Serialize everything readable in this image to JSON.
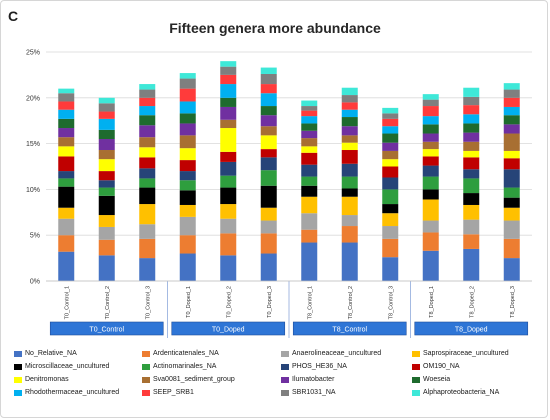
{
  "panel_letter": "C",
  "chart_data": {
    "type": "bar",
    "stacked": true,
    "title": "Fifteen genera more abundance",
    "xlabel": "",
    "ylabel": "",
    "ylim": [
      0,
      25
    ],
    "yticks": [
      "0%",
      "5%",
      "10%",
      "15%",
      "20%",
      "25%"
    ],
    "grid": true,
    "legend_position": "bottom",
    "categories": [
      "T0_Control_1",
      "T0_Control_2",
      "T0_Control_3",
      "T0_Doped_1",
      "T0_Doped_2",
      "T0_Doped_3",
      "T8_Control_1",
      "T8_Control_2",
      "T8_Control_3",
      "T8_Doped_1",
      "T8_Doped_2",
      "T8_Doped_3"
    ],
    "groups": [
      {
        "label": "T0_Control",
        "members": [
          0,
          1,
          2
        ]
      },
      {
        "label": "T0_Doped",
        "members": [
          3,
          4,
          5
        ]
      },
      {
        "label": "T8_Control",
        "members": [
          6,
          7,
          8
        ]
      },
      {
        "label": "T8_Doped",
        "members": [
          9,
          10,
          11
        ]
      }
    ],
    "series": [
      {
        "name": "No_Relative_NA",
        "color": "#4472c4",
        "values": [
          3.2,
          2.8,
          2.5,
          3.0,
          2.8,
          3.0,
          4.2,
          4.2,
          2.6,
          3.3,
          3.5,
          2.5
        ]
      },
      {
        "name": "Ardenticatenales_NA",
        "color": "#ed7d31",
        "values": [
          1.8,
          1.7,
          2.1,
          2.0,
          2.4,
          2.2,
          1.4,
          1.8,
          2.0,
          2.0,
          1.6,
          2.1
        ]
      },
      {
        "name": "Anaerolineaceae_uncultured",
        "color": "#a5a5a5",
        "values": [
          1.8,
          1.4,
          1.6,
          2.0,
          1.6,
          1.4,
          1.8,
          1.2,
          1.4,
          1.3,
          1.6,
          2.0
        ]
      },
      {
        "name": "Saprospiraceae_uncultured",
        "color": "#ffc000",
        "values": [
          1.2,
          1.3,
          2.2,
          1.3,
          1.6,
          1.4,
          1.8,
          2.0,
          1.4,
          2.3,
          1.6,
          1.4
        ]
      },
      {
        "name": "Microscillaceae_uncultured",
        "color": "#000000",
        "values": [
          2.3,
          2.1,
          1.8,
          1.6,
          1.8,
          2.4,
          1.2,
          0.9,
          1.0,
          1.1,
          1.3,
          1.1
        ]
      },
      {
        "name": "Actinomarinales_NA",
        "color": "#2e9e3e",
        "values": [
          0.9,
          0.9,
          1.0,
          1.1,
          1.3,
          1.7,
          1.0,
          1.3,
          1.6,
          1.4,
          1.6,
          1.1
        ]
      },
      {
        "name": "PHOS_HE36_NA",
        "color": "#264478",
        "values": [
          0.8,
          0.8,
          1.1,
          1.0,
          1.5,
          1.4,
          1.3,
          1.4,
          1.3,
          1.2,
          1.0,
          2.0
        ]
      },
      {
        "name": "OM190_NA",
        "color": "#c00000",
        "values": [
          1.6,
          1.0,
          1.2,
          1.2,
          1.1,
          0.9,
          1.3,
          1.5,
          1.2,
          1.0,
          1.3,
          1.2
        ]
      },
      {
        "name": "Denitromonas",
        "color": "#ffff00",
        "values": [
          1.1,
          1.3,
          1.1,
          1.3,
          2.6,
          1.5,
          0.7,
          0.8,
          0.8,
          0.8,
          0.7,
          0.8
        ]
      },
      {
        "name": "Sva0081_sediment_group",
        "color": "#a86f32",
        "values": [
          1.0,
          1.0,
          1.1,
          1.4,
          0.9,
          1.0,
          0.9,
          0.8,
          0.9,
          0.8,
          1.0,
          1.9
        ]
      },
      {
        "name": "Ilumatobacter",
        "color": "#7030a0",
        "values": [
          1.0,
          1.2,
          1.3,
          1.3,
          1.4,
          1.2,
          0.8,
          1.0,
          0.9,
          0.9,
          1.0,
          1.0
        ]
      },
      {
        "name": "Woeseia",
        "color": "#1e6b2e",
        "values": [
          1.0,
          1.0,
          1.1,
          1.1,
          1.0,
          1.0,
          0.8,
          1.0,
          1.0,
          1.0,
          1.0,
          1.0
        ]
      },
      {
        "name": "Rhodothermaceae_uncultured",
        "color": "#00b0f0",
        "values": [
          1.0,
          1.2,
          1.0,
          1.3,
          1.5,
          1.4,
          0.8,
          0.8,
          0.8,
          0.9,
          1.0,
          0.9
        ]
      },
      {
        "name": "SEEP_SRB1",
        "color": "#ff3b3b",
        "values": [
          0.9,
          0.8,
          0.9,
          1.4,
          1.0,
          1.0,
          0.6,
          0.8,
          0.8,
          1.1,
          1.0,
          1.0
        ]
      },
      {
        "name": "SBR1031_NA",
        "color": "#7f7f7f",
        "values": [
          0.9,
          0.9,
          0.9,
          1.1,
          0.9,
          1.1,
          0.5,
          0.8,
          0.6,
          0.7,
          0.9,
          0.9
        ]
      },
      {
        "name": "Alphaproteobacteria_NA",
        "color": "#3ee8d8",
        "values": [
          0.5,
          0.6,
          0.6,
          0.6,
          0.6,
          0.7,
          0.6,
          0.8,
          0.6,
          0.6,
          1.0,
          0.7
        ]
      }
    ]
  }
}
